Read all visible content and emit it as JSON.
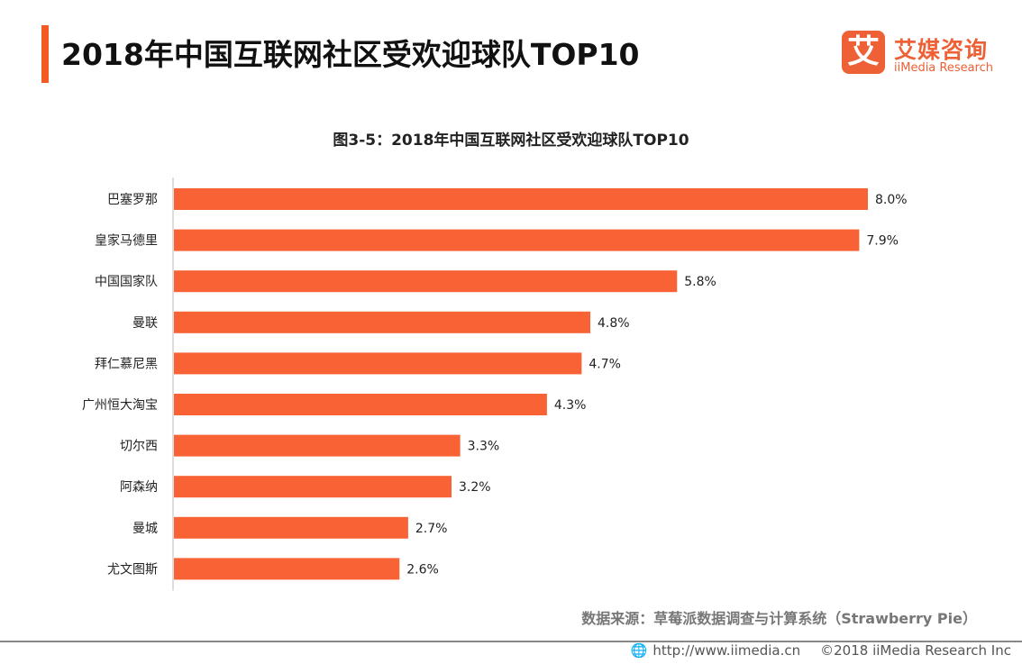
{
  "header": {
    "title": "2018年中国互联网社区受欢迎球队TOP10",
    "accent_color": "#f15a22"
  },
  "logo": {
    "mark": "艾",
    "name_cn": "艾媒咨询",
    "name_en": "iiMedia Research"
  },
  "chart_data": {
    "type": "bar",
    "orientation": "horizontal",
    "title": "图3-5：2018年中国互联网社区受欢迎球队TOP10",
    "categories": [
      "巴塞罗那",
      "皇家马德里",
      "中国国家队",
      "曼联",
      "拜仁慕尼黑",
      "广州恒大淘宝",
      "切尔西",
      "阿森纳",
      "曼城",
      "尤文图斯"
    ],
    "values": [
      8.0,
      7.9,
      5.8,
      4.8,
      4.7,
      4.3,
      3.3,
      3.2,
      2.7,
      2.6
    ],
    "labels": [
      "8.0%",
      "7.9%",
      "5.8%",
      "4.8%",
      "4.7%",
      "4.3%",
      "3.3%",
      "3.2%",
      "2.7%",
      "2.6%"
    ],
    "unit": "%",
    "xlim": [
      0,
      8.0
    ],
    "grid": false,
    "bar_color": "#f96234"
  },
  "source": "数据来源：草莓派数据调查与计算系统（Strawberry Pie）",
  "footer": {
    "icon": "globe-icon",
    "url": "http://www.iimedia.cn",
    "copyright": "©2018  iiMedia Research  Inc"
  }
}
